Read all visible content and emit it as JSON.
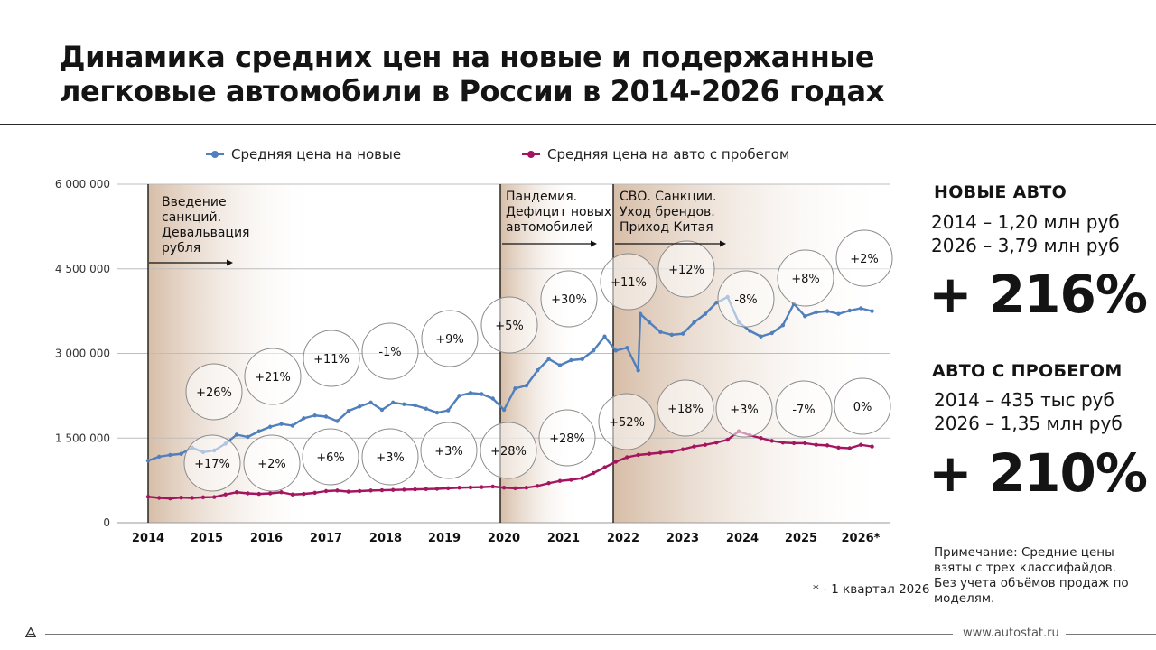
{
  "title": "Динамика средних цен на новые и подержанные легковые автомобили в России в 2014-2026 годах",
  "legend": {
    "new_label": "Средняя цена на новые",
    "used_label": "Средняя  цена на авто с пробегом"
  },
  "colors": {
    "new": "#4f7fbd",
    "used": "#a3155f",
    "period_shade": "#c7a98e"
  },
  "chart_data": {
    "type": "line",
    "x_categories": [
      "2014",
      "2015",
      "2016",
      "2017",
      "2018",
      "2019",
      "2020",
      "2021",
      "2022",
      "2023",
      "2024",
      "2025",
      "2026*"
    ],
    "ylim": [
      0,
      6000000
    ],
    "yticks": [
      0,
      1500000,
      3000000,
      4500000,
      6000000
    ],
    "ytick_labels": [
      "0",
      "1 500 000",
      "3 000 000",
      "4 500 000",
      "6 000 000"
    ],
    "grid": true,
    "legend_position": "top",
    "series": [
      {
        "name": "Средняя цена на новые",
        "points": [
          [
            2014.0,
            1100000
          ],
          [
            2014.25,
            1170000
          ],
          [
            2014.5,
            1200000
          ],
          [
            2014.75,
            1220000
          ],
          [
            2015.0,
            1330000
          ],
          [
            2015.25,
            1250000
          ],
          [
            2015.5,
            1280000
          ],
          [
            2015.75,
            1400000
          ],
          [
            2016.0,
            1560000
          ],
          [
            2016.25,
            1520000
          ],
          [
            2016.5,
            1620000
          ],
          [
            2016.75,
            1700000
          ],
          [
            2017.0,
            1750000
          ],
          [
            2017.25,
            1720000
          ],
          [
            2017.5,
            1850000
          ],
          [
            2017.75,
            1900000
          ],
          [
            2018.0,
            1880000
          ],
          [
            2018.25,
            1800000
          ],
          [
            2018.5,
            1980000
          ],
          [
            2018.75,
            2060000
          ],
          [
            2019.0,
            2130000
          ],
          [
            2019.25,
            2000000
          ],
          [
            2019.5,
            2130000
          ],
          [
            2019.75,
            2100000
          ],
          [
            2020.0,
            2080000
          ],
          [
            2020.25,
            2020000
          ],
          [
            2020.5,
            1950000
          ],
          [
            2020.75,
            1990000
          ],
          [
            2021.0,
            2250000
          ],
          [
            2021.25,
            2300000
          ],
          [
            2021.5,
            2280000
          ],
          [
            2021.75,
            2200000
          ],
          [
            2022.0,
            2000000
          ],
          [
            2022.25,
            2380000
          ],
          [
            2022.5,
            2430000
          ],
          [
            2022.75,
            2700000
          ],
          [
            2023.0,
            2900000
          ],
          [
            2023.25,
            2790000
          ],
          [
            2023.5,
            2880000
          ],
          [
            2023.75,
            2900000
          ],
          [
            2024.0,
            3050000
          ],
          [
            2024.25,
            3300000
          ],
          [
            2024.5,
            3050000
          ],
          [
            2024.75,
            3100000
          ],
          [
            2025.0,
            2700000
          ],
          [
            2025.05,
            3700000
          ],
          [
            2025.25,
            3550000
          ],
          [
            2025.5,
            3380000
          ],
          [
            2025.75,
            3330000
          ],
          [
            2026.0,
            3350000
          ],
          [
            2026.25,
            3550000
          ],
          [
            2026.5,
            3700000
          ],
          [
            2026.75,
            3900000
          ],
          [
            2027.0,
            4000000
          ],
          [
            2027.25,
            3550000
          ],
          [
            2027.5,
            3400000
          ],
          [
            2027.75,
            3300000
          ],
          [
            2028.0,
            3360000
          ],
          [
            2028.25,
            3500000
          ],
          [
            2028.5,
            3880000
          ],
          [
            2028.75,
            3660000
          ],
          [
            2029.0,
            3730000
          ],
          [
            2029.25,
            3750000
          ],
          [
            2029.5,
            3700000
          ],
          [
            2029.75,
            3760000
          ],
          [
            2030.0,
            3800000
          ],
          [
            2030.25,
            3750000
          ]
        ]
      },
      {
        "name": "Средняя  цена на авто с пробегом",
        "points": [
          [
            2014.0,
            460000
          ],
          [
            2014.25,
            440000
          ],
          [
            2014.5,
            430000
          ],
          [
            2014.75,
            445000
          ],
          [
            2015.0,
            440000
          ],
          [
            2015.25,
            450000
          ],
          [
            2015.5,
            455000
          ],
          [
            2015.75,
            500000
          ],
          [
            2016.0,
            540000
          ],
          [
            2016.25,
            520000
          ],
          [
            2016.5,
            510000
          ],
          [
            2016.75,
            520000
          ],
          [
            2017.0,
            540000
          ],
          [
            2017.25,
            500000
          ],
          [
            2017.5,
            510000
          ],
          [
            2017.75,
            530000
          ],
          [
            2018.0,
            560000
          ],
          [
            2018.25,
            570000
          ],
          [
            2018.5,
            550000
          ],
          [
            2018.75,
            560000
          ],
          [
            2019.0,
            570000
          ],
          [
            2019.25,
            575000
          ],
          [
            2019.5,
            580000
          ],
          [
            2019.75,
            585000
          ],
          [
            2020.0,
            590000
          ],
          [
            2020.25,
            595000
          ],
          [
            2020.5,
            600000
          ],
          [
            2020.75,
            610000
          ],
          [
            2021.0,
            620000
          ],
          [
            2021.25,
            625000
          ],
          [
            2021.5,
            630000
          ],
          [
            2021.75,
            640000
          ],
          [
            2022.0,
            620000
          ],
          [
            2022.25,
            610000
          ],
          [
            2022.5,
            620000
          ],
          [
            2022.75,
            650000
          ],
          [
            2023.0,
            700000
          ],
          [
            2023.25,
            740000
          ],
          [
            2023.5,
            760000
          ],
          [
            2023.75,
            790000
          ],
          [
            2024.0,
            880000
          ],
          [
            2024.25,
            980000
          ],
          [
            2024.5,
            1080000
          ],
          [
            2024.75,
            1160000
          ],
          [
            2025.0,
            1200000
          ],
          [
            2025.25,
            1220000
          ],
          [
            2025.5,
            1240000
          ],
          [
            2025.75,
            1260000
          ],
          [
            2026.0,
            1300000
          ],
          [
            2026.25,
            1350000
          ],
          [
            2026.5,
            1380000
          ],
          [
            2026.75,
            1420000
          ],
          [
            2027.0,
            1470000
          ],
          [
            2027.25,
            1620000
          ],
          [
            2027.5,
            1550000
          ],
          [
            2027.75,
            1500000
          ],
          [
            2028.0,
            1450000
          ],
          [
            2028.25,
            1420000
          ],
          [
            2028.5,
            1410000
          ],
          [
            2028.75,
            1410000
          ],
          [
            2029.0,
            1380000
          ],
          [
            2029.25,
            1370000
          ],
          [
            2029.5,
            1330000
          ],
          [
            2029.75,
            1320000
          ],
          [
            2030.0,
            1380000
          ],
          [
            2030.25,
            1350000
          ]
        ]
      }
    ],
    "period_annotations": [
      "Введение санкций. Девальвация рубля",
      "Пандемия. Дефицит новых автомобилей",
      "СВО. Санкции. Уход брендов. Приход Китая"
    ],
    "growth_new": [
      "+26%",
      "+21%",
      "+11%",
      "-1%",
      "+9%",
      "+5%",
      "+30%",
      "+11%",
      "+12%",
      "-8%",
      "+8%",
      "+2%"
    ],
    "growth_used": [
      "+17%",
      "+2%",
      "+6%",
      "+3%",
      "+3%",
      "+28%",
      "+28%",
      "+52%",
      "+18%",
      "+3%",
      "-7%",
      "0%"
    ]
  },
  "side": {
    "new_title": "НОВЫЕ АВТО",
    "new_line1": "2014 – 1,20 млн руб",
    "new_line2": "2026 – 3,79 млн руб",
    "new_change": "+ 216%",
    "used_title": "АВТО С ПРОБЕГОМ",
    "used_line1": "2014 – 435 тыс руб",
    "used_line2": "2026 – 1,35 млн руб",
    "used_change": "+ 210%"
  },
  "note": "Примечание: Средние цены взяты с трех классифайдов. Без учета объёмов продаж по моделям.",
  "footnote": "* -  1 квартал 2026",
  "site": "www.autostat.ru"
}
